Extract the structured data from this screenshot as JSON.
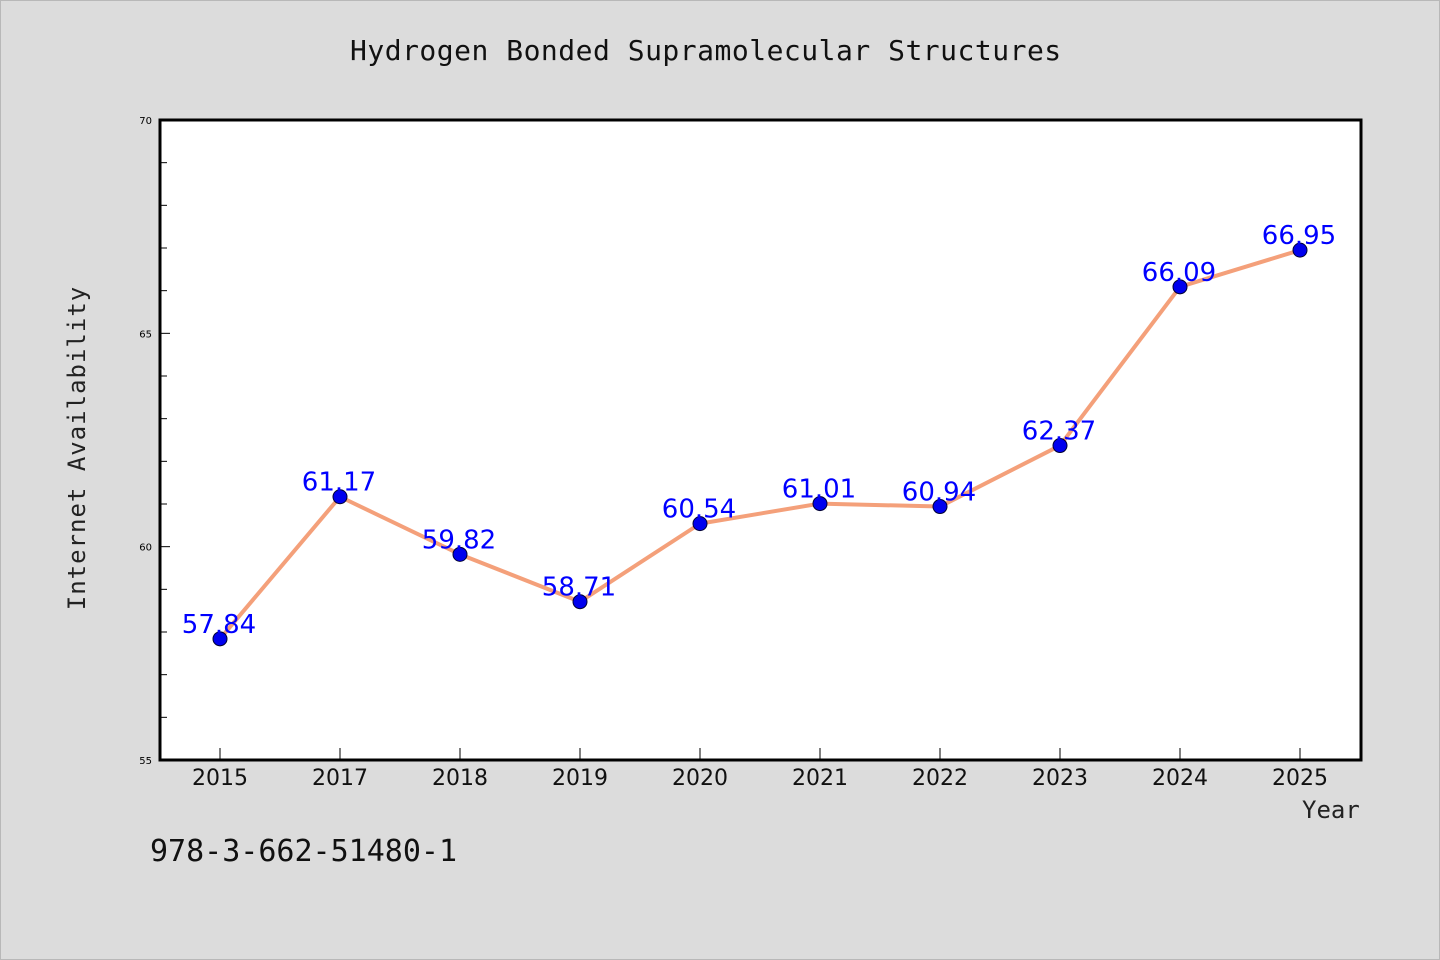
{
  "chart_data": {
    "type": "line",
    "title": "Hydrogen Bonded Supramolecular Structures",
    "xlabel": "Year",
    "ylabel": "Internet Availability",
    "x": [
      "2015",
      "2017",
      "2018",
      "2019",
      "2020",
      "2021",
      "2022",
      "2023",
      "2024",
      "2025"
    ],
    "y_ticks": [
      "55",
      "60",
      "65",
      "70"
    ],
    "ylim": [
      55,
      70
    ],
    "grid": false,
    "series": [
      {
        "values": [
          57.84,
          61.17,
          59.82,
          58.71,
          60.54,
          61.01,
          60.94,
          62.37,
          66.09,
          66.95
        ],
        "labels": [
          "57.84",
          "61.17",
          "59.82",
          "58.71",
          "60.54",
          "61.01",
          "60.94",
          "62.37",
          "66.09",
          "66.95"
        ],
        "line_color": "#f4a07a",
        "marker_color": "#0000ee",
        "label_color": "#0000ff"
      }
    ]
  },
  "footer": {
    "code": "978-3-662-51480-1"
  },
  "colors": {
    "background": "#dcdcdc",
    "plot_background": "#ffffff"
  }
}
